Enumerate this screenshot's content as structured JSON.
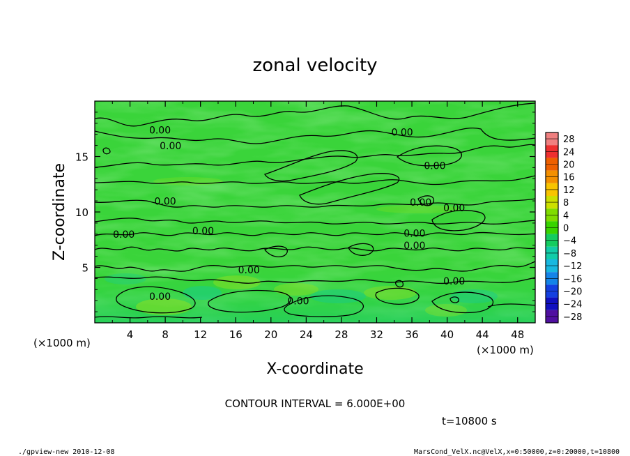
{
  "chart_data": {
    "type": "heatmap",
    "title": "zonal velocity",
    "xlabel": "X-coordinate",
    "ylabel": "Z-coordinate",
    "x_unit_label": "(×1000 m)",
    "y_unit_label": "(×1000 m)",
    "xlim": [
      0,
      50
    ],
    "ylim": [
      0,
      20
    ],
    "x_ticks": [
      "4",
      "8",
      "12",
      "16",
      "20",
      "24",
      "28",
      "32",
      "36",
      "40",
      "44",
      "48"
    ],
    "x_tick_values": [
      4,
      8,
      12,
      16,
      20,
      24,
      28,
      32,
      36,
      40,
      44,
      48
    ],
    "y_ticks": [
      "5",
      "10",
      "15"
    ],
    "y_tick_values": [
      5,
      10,
      15
    ],
    "colorbar": {
      "levels": [
        28,
        24,
        20,
        16,
        12,
        8,
        4,
        0,
        -4,
        -8,
        -12,
        -16,
        -20,
        -24,
        -28
      ],
      "labels": [
        "28",
        "24",
        "20",
        "16",
        "12",
        "8",
        "4",
        "0",
        "−4",
        "−8",
        "−12",
        "−16",
        "−20",
        "−24",
        "−28"
      ],
      "colors": [
        "#f08080",
        "#ee3030",
        "#ee6000",
        "#f49000",
        "#f8c400",
        "#cce000",
        "#80dc00",
        "#38d400",
        "#14cc60",
        "#12cca8",
        "#18b8e0",
        "#1484e8",
        "#1440e0",
        "#1010c0",
        "#5010a0"
      ]
    },
    "contour_interval_text": "CONTOUR INTERVAL = 6.000E+00",
    "contour_labels": [
      {
        "text": "0.00",
        "x": 7.4,
        "z": 17.2
      },
      {
        "text": "0.00",
        "x": 8.6,
        "z": 15.8
      },
      {
        "text": "0.00",
        "x": 8.0,
        "z": 10.8
      },
      {
        "text": "0.00",
        "x": 3.3,
        "z": 7.8
      },
      {
        "text": "0.00",
        "x": 12.3,
        "z": 8.1
      },
      {
        "text": "0.00",
        "x": 17.5,
        "z": 4.6
      },
      {
        "text": "0.00",
        "x": 7.4,
        "z": 2.2
      },
      {
        "text": "0.00",
        "x": 23.1,
        "z": 1.8
      },
      {
        "text": "0.00",
        "x": 34.9,
        "z": 17.0
      },
      {
        "text": "0.00",
        "x": 38.6,
        "z": 14.0
      },
      {
        "text": "0.00",
        "x": 37.0,
        "z": 10.7
      },
      {
        "text": "0.00",
        "x": 40.8,
        "z": 10.2
      },
      {
        "text": "0.00",
        "x": 36.3,
        "z": 7.9
      },
      {
        "text": "0.00",
        "x": 36.3,
        "z": 6.8
      },
      {
        "text": "0.00",
        "x": 40.8,
        "z": 3.6
      }
    ]
  },
  "time_text": "t=10800 s",
  "footer_left": "./gpview-new  2010-12-08",
  "footer_right": "MarsCond_VelX.nc@VelX,x=0:50000,z=0:20000,t=10800"
}
